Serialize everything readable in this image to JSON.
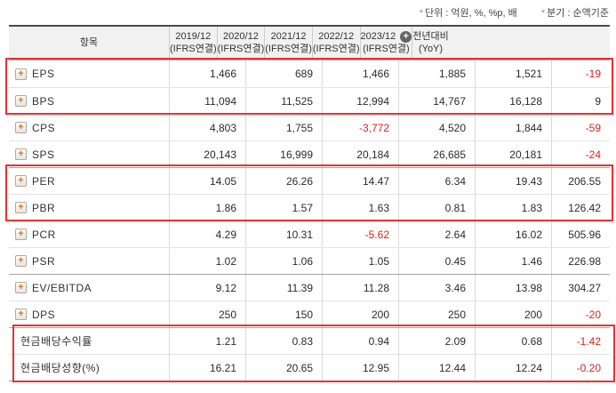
{
  "notes": {
    "unit": "단위 : 억원, %, %p, 배",
    "basis": "분기 : 순액기준",
    "star": "*"
  },
  "table": {
    "item_header": "항목",
    "columns": [
      {
        "period": "2019/12",
        "basis": "(IFRS연결)"
      },
      {
        "period": "2020/12",
        "basis": "(IFRS연결)"
      },
      {
        "period": "2021/12",
        "basis": "(IFRS연결)"
      },
      {
        "period": "2022/12",
        "basis": "(IFRS연결)"
      },
      {
        "period": "2023/12",
        "basis": "(IFRS연결)",
        "has_add_button": true,
        "add_icon": "+"
      },
      {
        "period": "전년대비",
        "basis": "(YoY)"
      }
    ],
    "rows": [
      {
        "label": "EPS",
        "expandable": true,
        "icon": "+",
        "values": [
          "1,466",
          "689",
          "1,466",
          "1,885",
          "1,521",
          "-19"
        ]
      },
      {
        "label": "BPS",
        "expandable": true,
        "icon": "+",
        "values": [
          "11,094",
          "11,525",
          "12,994",
          "14,767",
          "16,128",
          "9"
        ]
      },
      {
        "label": "CPS",
        "expandable": true,
        "icon": "+",
        "values": [
          "4,803",
          "1,755",
          "-3,772",
          "4,520",
          "1,844",
          "-59"
        ]
      },
      {
        "label": "SPS",
        "expandable": true,
        "icon": "+",
        "values": [
          "20,143",
          "16,999",
          "20,184",
          "26,685",
          "20,181",
          "-24"
        ]
      },
      {
        "label": "PER",
        "expandable": true,
        "icon": "+",
        "values": [
          "14.05",
          "26.26",
          "14.47",
          "6.34",
          "19.43",
          "206.55"
        ]
      },
      {
        "label": "PBR",
        "expandable": true,
        "icon": "+",
        "values": [
          "1.86",
          "1.57",
          "1.63",
          "0.81",
          "1.83",
          "126.42"
        ]
      },
      {
        "label": "PCR",
        "expandable": true,
        "icon": "+",
        "values": [
          "4.29",
          "10.31",
          "-5.62",
          "2.64",
          "16.02",
          "505.96"
        ]
      },
      {
        "label": "PSR",
        "expandable": true,
        "icon": "+",
        "values": [
          "1.02",
          "1.06",
          "1.05",
          "0.45",
          "1.46",
          "226.98"
        ]
      },
      {
        "label": "EV/EBITDA",
        "expandable": true,
        "icon": "+",
        "values": [
          "9.12",
          "11.39",
          "11.28",
          "3.46",
          "13.98",
          "304.27"
        ]
      },
      {
        "label": "DPS",
        "expandable": true,
        "icon": "+",
        "values": [
          "250",
          "150",
          "200",
          "250",
          "200",
          "-20"
        ]
      },
      {
        "label": "현금배당수익률",
        "expandable": false,
        "values": [
          "1.21",
          "0.83",
          "0.94",
          "2.09",
          "0.68",
          "-1.42"
        ]
      },
      {
        "label": "현금배당성향(%)",
        "expandable": false,
        "values": [
          "16.21",
          "20.65",
          "12.95",
          "12.44",
          "12.24",
          "-0.20"
        ]
      }
    ]
  }
}
